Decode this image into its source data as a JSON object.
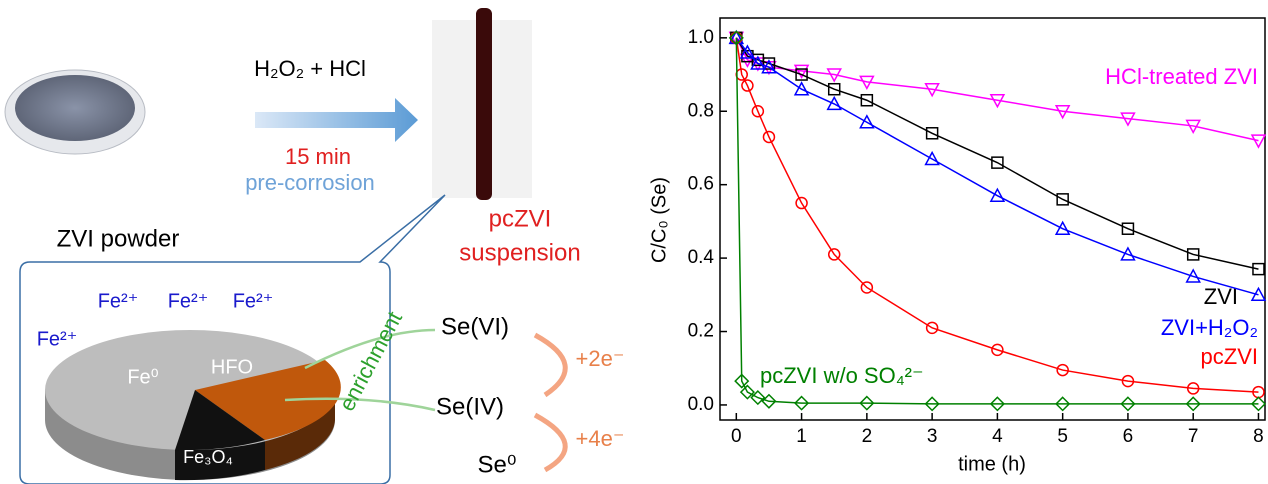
{
  "diagram": {
    "reagent": "H₂O₂ + HCl",
    "time": "15 min",
    "process": "pre-corrosion",
    "powder": "ZVI powder",
    "product": [
      "pcZVI",
      "suspension"
    ],
    "ions": [
      "Fe²⁺",
      "Fe²⁺",
      "Fe²⁺",
      "Fe²⁺"
    ],
    "phases": [
      "Fe⁰",
      "HFO",
      "Fe₃O₄"
    ],
    "enrichment": "enrichment",
    "species": [
      "Se(VI)",
      "Se(IV)",
      "Se⁰"
    ],
    "electrons": [
      "+2e⁻",
      "+4e⁻"
    ]
  },
  "chart_data": {
    "type": "line",
    "xlabel": "time (h)",
    "ylabel": "C/C₀ (Se)",
    "xlim": [
      -0.25,
      8.1
    ],
    "ylim": [
      -0.041,
      1.054
    ],
    "xticks": [
      0,
      1,
      2,
      3,
      4,
      5,
      6,
      7,
      8
    ],
    "yticks": [
      {
        "value": 0,
        "label": "0.0"
      },
      0.2,
      0.4,
      0.6,
      0.8,
      {
        "value": 1,
        "label": "1.0"
      }
    ],
    "series": [
      {
        "name": "HCl-treated ZVI",
        "color": "#ff00ff",
        "marker": "triangle-down",
        "x": [
          0,
          0.17,
          0.33,
          0.5,
          1,
          1.5,
          2,
          3,
          4,
          5,
          6,
          7,
          8
        ],
        "values": [
          1.0,
          0.94,
          0.93,
          0.92,
          0.91,
          0.9,
          0.88,
          0.86,
          0.83,
          0.8,
          0.78,
          0.76,
          0.72
        ]
      },
      {
        "name": "ZVI",
        "color": "#000000",
        "marker": "square",
        "x": [
          0,
          0.17,
          0.33,
          0.5,
          1,
          1.5,
          2,
          3,
          4,
          5,
          6,
          7,
          8
        ],
        "values": [
          1.0,
          0.95,
          0.94,
          0.93,
          0.9,
          0.86,
          0.83,
          0.74,
          0.66,
          0.56,
          0.48,
          0.41,
          0.37
        ]
      },
      {
        "name": "ZVI+H₂O₂",
        "color": "#0000ff",
        "marker": "triangle-up",
        "x": [
          0,
          0.17,
          0.33,
          0.5,
          1,
          1.5,
          2,
          3,
          4,
          5,
          6,
          7,
          8
        ],
        "values": [
          1.0,
          0.96,
          0.93,
          0.92,
          0.86,
          0.82,
          0.77,
          0.67,
          0.57,
          0.48,
          0.41,
          0.35,
          0.3
        ]
      },
      {
        "name": "pcZVI",
        "color": "#ff0000",
        "marker": "circle",
        "x": [
          0,
          0.083,
          0.17,
          0.33,
          0.5,
          1,
          1.5,
          2,
          3,
          4,
          5,
          6,
          7,
          8
        ],
        "values": [
          1.0,
          0.9,
          0.87,
          0.8,
          0.73,
          0.55,
          0.41,
          0.32,
          0.21,
          0.15,
          0.095,
          0.065,
          0.045,
          0.035
        ]
      },
      {
        "name": "pcZVI w/o SO₄²⁻",
        "color": "#008000",
        "marker": "diamond",
        "x": [
          0,
          0.083,
          0.17,
          0.33,
          0.5,
          1,
          2,
          3,
          4,
          5,
          6,
          7,
          8
        ],
        "values": [
          1.0,
          0.065,
          0.035,
          0.02,
          0.01,
          0.005,
          0.005,
          0.003,
          0.003,
          0.003,
          0.003,
          0.003,
          0.003
        ]
      }
    ]
  }
}
